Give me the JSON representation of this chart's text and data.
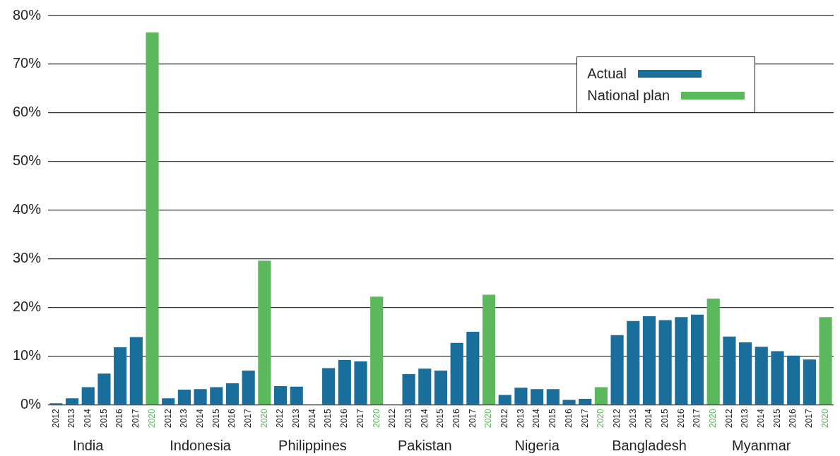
{
  "chart_data": {
    "type": "bar",
    "categories": [
      "2012",
      "2013",
      "2014",
      "2015",
      "2016",
      "2017",
      "2020",
      "2012",
      "2013",
      "2014",
      "2015",
      "2016",
      "2017",
      "2020",
      "2012",
      "2013",
      "2014",
      "2015",
      "2016",
      "2017",
      "2020",
      "2012",
      "2013",
      "2014",
      "2015",
      "2016",
      "2017",
      "2020",
      "2012",
      "2013",
      "2014",
      "2015",
      "2016",
      "2017",
      "2020",
      "2012",
      "2013",
      "2014",
      "2015",
      "2016",
      "2017",
      "2020",
      "2012",
      "2013",
      "2014",
      "2015",
      "2016",
      "2017",
      "2020"
    ],
    "series": [
      {
        "name": "Actual",
        "color": "#1a6e9b",
        "values": [
          0.3,
          1.3,
          3.6,
          6.4,
          11.8,
          13.9,
          null,
          1.3,
          3.1,
          3.2,
          3.6,
          4.4,
          7.0,
          null,
          3.8,
          3.7,
          null,
          7.5,
          9.2,
          8.9,
          null,
          null,
          6.3,
          7.4,
          7.0,
          12.7,
          15.0,
          null,
          2.0,
          3.5,
          3.2,
          3.2,
          1.0,
          1.2,
          null,
          14.3,
          17.2,
          18.2,
          17.4,
          18.0,
          18.5,
          null,
          14.0,
          12.8,
          11.9,
          11.0,
          10.1,
          9.3,
          null
        ]
      },
      {
        "name": "National plan",
        "color": "#5cb85c",
        "values": [
          null,
          null,
          null,
          null,
          null,
          null,
          76.5,
          null,
          null,
          null,
          null,
          null,
          null,
          29.6,
          null,
          null,
          null,
          null,
          null,
          null,
          22.2,
          null,
          null,
          null,
          null,
          null,
          null,
          22.6,
          null,
          null,
          null,
          null,
          null,
          null,
          3.6,
          null,
          null,
          null,
          null,
          null,
          null,
          21.8,
          null,
          null,
          null,
          null,
          null,
          null,
          18.0
        ]
      }
    ],
    "annotations": [
      "India",
      "Indonesia",
      "Philippines",
      "Pakistan",
      "Nigeria",
      "Bangladesh",
      "Myanmar"
    ],
    "ylim": [
      0,
      80
    ],
    "yticks": [
      {
        "value": 0,
        "label": "0%"
      },
      {
        "value": 10,
        "label": "10%"
      },
      {
        "value": 20,
        "label": "20%"
      },
      {
        "value": 30,
        "label": "30%"
      },
      {
        "value": 40,
        "label": "40%"
      },
      {
        "value": 50,
        "label": "50%"
      },
      {
        "value": 60,
        "label": "60%"
      },
      {
        "value": 70,
        "label": "70%"
      },
      {
        "value": 80,
        "label": "80%"
      }
    ],
    "grid": "y",
    "legend": "top right"
  }
}
